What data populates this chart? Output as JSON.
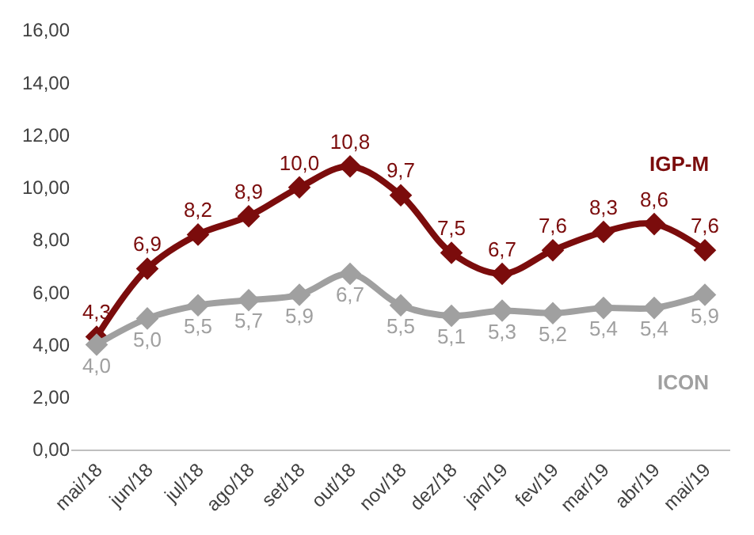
{
  "chart_data": {
    "type": "line",
    "categories": [
      "mai/18",
      "jun/18",
      "jul/18",
      "ago/18",
      "set/18",
      "out/18",
      "nov/18",
      "dez/18",
      "jan/19",
      "fev/19",
      "mar/19",
      "abr/19",
      "mai/19"
    ],
    "series": [
      {
        "name": "IGP-M",
        "color": "#7b0c0c",
        "values": [
          4.3,
          6.9,
          8.2,
          8.9,
          10.0,
          10.8,
          9.7,
          7.5,
          6.7,
          7.6,
          8.3,
          8.6,
          7.6
        ],
        "value_labels": [
          "4,3",
          "6,9",
          "8,2",
          "8,9",
          "10,0",
          "10,8",
          "9,7",
          "7,5",
          "6,7",
          "7,6",
          "8,3",
          "8,6",
          "7,6"
        ]
      },
      {
        "name": "ICON",
        "color": "#a0a0a0",
        "values": [
          4.0,
          5.0,
          5.5,
          5.7,
          5.9,
          6.7,
          5.5,
          5.1,
          5.3,
          5.2,
          5.4,
          5.4,
          5.9
        ],
        "value_labels": [
          "4,0",
          "5,0",
          "5,5",
          "5,7",
          "5,9",
          "6,7",
          "5,5",
          "5,1",
          "5,3",
          "5,2",
          "5,4",
          "5,4",
          "5,9"
        ]
      }
    ],
    "ylim": [
      0,
      16
    ],
    "yticks": [
      {
        "value": 0,
        "label": "0,00"
      },
      {
        "value": 2,
        "label": "2,00"
      },
      {
        "value": 4,
        "label": "4,00"
      },
      {
        "value": 6,
        "label": "6,00"
      },
      {
        "value": 8,
        "label": "8,00"
      },
      {
        "value": 10,
        "label": "10,00"
      },
      {
        "value": 12,
        "label": "12,00"
      },
      {
        "value": 14,
        "label": "14,00"
      },
      {
        "value": 16,
        "label": "16,00"
      }
    ],
    "marker": "diamond",
    "line_style": "solid"
  }
}
